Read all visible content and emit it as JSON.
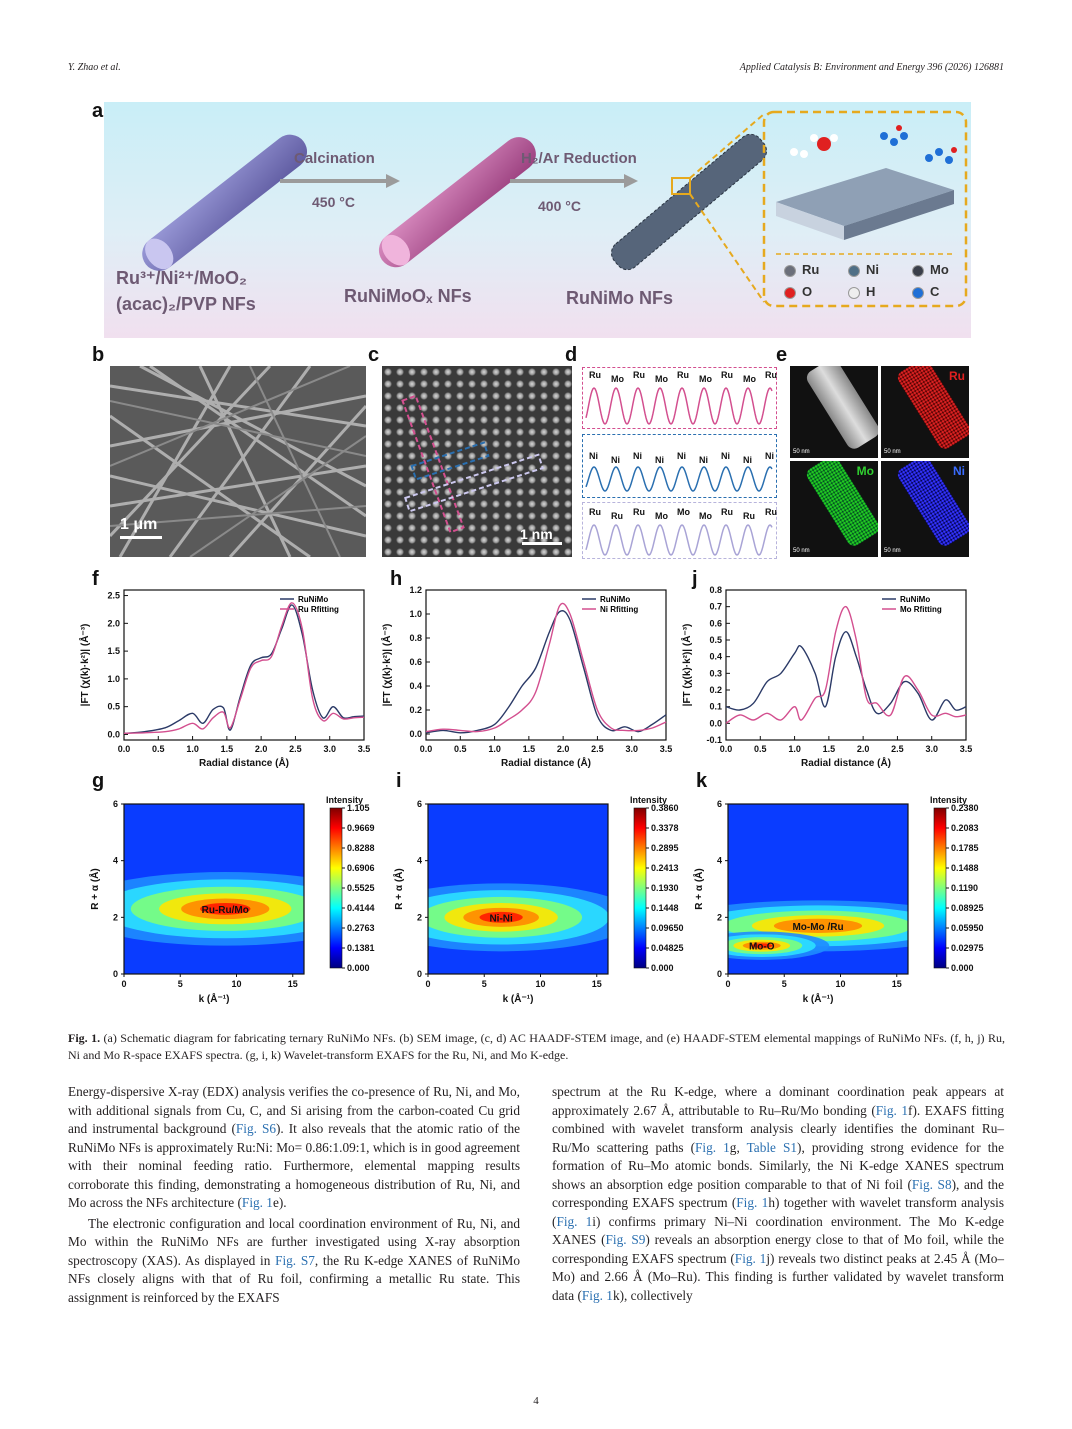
{
  "header": {
    "left": "Y. Zhao et al.",
    "right": "Applied Catalysis B: Environment and Energy 396 (2026) 126881"
  },
  "panels": {
    "a": "a",
    "b": "b",
    "c": "c",
    "d": "d",
    "e": "e",
    "f": "f",
    "g": "g",
    "h": "h",
    "i": "i",
    "j": "j",
    "k": "k"
  },
  "schematic": {
    "step1": "Calcination",
    "temp1": "450 °C",
    "step2": "H₂/Ar Reduction",
    "temp2": "400 °C",
    "precursor_line1": "Ru³⁺/Ni²⁺/MoO₂",
    "precursor_line2": "(acac)₂/PVP NFs",
    "oxide": "RuNiMoOₓ NFs",
    "product": "RuNiMo NFs",
    "legend": [
      "Ru",
      "Ni",
      "Mo",
      "O",
      "H",
      "C"
    ],
    "colors": {
      "Ru": "#6b6f7a",
      "Ni": "#4f6f86",
      "Mo": "#3a3f4a",
      "O": "#e02020",
      "H": "#eeeeee",
      "C": "#1f6fd6"
    }
  },
  "sem_scale": "1 μm",
  "stem_scale": "1 nm",
  "line_profiles": {
    "top": [
      "Ru",
      "Mo",
      "Ru",
      "Mo",
      "Ru",
      "Mo",
      "Ru",
      "Mo",
      "Ru"
    ],
    "middle": [
      "Ni",
      "Ni",
      "Ni",
      "Ni",
      "Ni",
      "Ni",
      "Ni",
      "Ni",
      "Ni"
    ],
    "bottom": [
      "Ru",
      "Ru",
      "Ru",
      "Mo",
      "Mo",
      "Mo",
      "Ru",
      "Ru",
      "Ru"
    ]
  },
  "mapping": {
    "labels": [
      "Ru",
      "Mo",
      "Ni"
    ],
    "scale": "50 nm"
  },
  "chart_data": [
    {
      "panel": "f",
      "type": "line",
      "xlabel": "Radial distance (Å)",
      "ylabel": "|FT (χ(k)·k²)| (Å⁻³)",
      "xlim": [
        0.0,
        3.5
      ],
      "ylim": [
        -0.1,
        2.6
      ],
      "xticks": [
        "0.0",
        "0.5",
        "1.0",
        "1.5",
        "2.0",
        "2.5",
        "3.0",
        "3.5"
      ],
      "yticks": [
        "0.0",
        "0.5",
        "1.0",
        "1.5",
        "2.0",
        "2.5"
      ],
      "series": [
        {
          "name": "RuNiMo",
          "color": "#2b3a67",
          "x": [
            0,
            0.3,
            0.6,
            0.8,
            1.0,
            1.15,
            1.3,
            1.45,
            1.55,
            1.7,
            1.85,
            2.0,
            2.15,
            2.3,
            2.45,
            2.6,
            2.75,
            2.9,
            3.05,
            3.2,
            3.35,
            3.5
          ],
          "y": [
            0.02,
            0.05,
            0.12,
            0.25,
            0.38,
            0.2,
            0.45,
            0.48,
            0.08,
            0.7,
            1.25,
            1.38,
            1.45,
            1.9,
            2.33,
            1.8,
            0.8,
            0.3,
            0.5,
            0.3,
            0.32,
            0.33
          ]
        },
        {
          "name": "Ru Rfitting",
          "color": "#d34f8f",
          "x": [
            0,
            0.3,
            0.6,
            0.8,
            1.0,
            1.15,
            1.3,
            1.45,
            1.55,
            1.7,
            1.85,
            2.0,
            2.15,
            2.3,
            2.45,
            2.6,
            2.75,
            2.9,
            3.05,
            3.2,
            3.35,
            3.5
          ],
          "y": [
            0.02,
            0.03,
            0.05,
            0.1,
            0.2,
            0.1,
            0.3,
            0.4,
            0.12,
            0.65,
            1.2,
            1.33,
            1.4,
            1.95,
            2.37,
            1.9,
            0.65,
            0.25,
            0.38,
            0.28,
            0.3,
            0.31
          ]
        }
      ]
    },
    {
      "panel": "h",
      "type": "line",
      "xlabel": "Radial distance (Å)",
      "ylabel": "|FT (χ(k)·k²)| (Å⁻³)",
      "xlim": [
        0.0,
        3.5
      ],
      "ylim": [
        -0.05,
        1.2
      ],
      "xticks": [
        "0.0",
        "0.5",
        "1.0",
        "1.5",
        "2.0",
        "2.5",
        "3.0",
        "3.5"
      ],
      "yticks": [
        "0.0",
        "0.2",
        "0.4",
        "0.6",
        "0.8",
        "1.0",
        "1.2"
      ],
      "series": [
        {
          "name": "RuNiMo",
          "color": "#2b3a67",
          "x": [
            0,
            0.25,
            0.5,
            0.75,
            1.0,
            1.2,
            1.4,
            1.6,
            1.8,
            1.95,
            2.1,
            2.3,
            2.5,
            2.7,
            2.9,
            3.1,
            3.3,
            3.5
          ],
          "y": [
            0.01,
            0.03,
            0.01,
            0.03,
            0.08,
            0.22,
            0.4,
            0.55,
            0.85,
            1.02,
            0.95,
            0.55,
            0.15,
            0.03,
            0.06,
            0.02,
            0.08,
            0.16
          ]
        },
        {
          "name": "Ni Rfitting",
          "color": "#d34f8f",
          "x": [
            0,
            0.25,
            0.5,
            0.75,
            1.0,
            1.2,
            1.4,
            1.6,
            1.8,
            1.95,
            2.1,
            2.3,
            2.5,
            2.7,
            2.9,
            3.1,
            3.3,
            3.5
          ],
          "y": [
            0.02,
            0.04,
            0.03,
            0.02,
            0.05,
            0.12,
            0.2,
            0.35,
            0.75,
            1.07,
            1.0,
            0.6,
            0.2,
            0.05,
            0.03,
            0.03,
            0.05,
            0.1
          ]
        }
      ]
    },
    {
      "panel": "j",
      "type": "line",
      "xlabel": "Radial distance (Å)",
      "ylabel": "|FT (χ(k)·k²)| (Å⁻³)",
      "xlim": [
        0.0,
        3.5
      ],
      "ylim": [
        -0.1,
        0.8
      ],
      "xticks": [
        "0.0",
        "0.5",
        "1.0",
        "1.5",
        "2.0",
        "2.5",
        "3.0",
        "3.5"
      ],
      "yticks": [
        "-0.1",
        "0.0",
        "0.1",
        "0.2",
        "0.3",
        "0.4",
        "0.5",
        "0.6",
        "0.7",
        "0.8"
      ],
      "series": [
        {
          "name": "RuNiMo",
          "color": "#2b3a67",
          "x": [
            0,
            0.2,
            0.4,
            0.6,
            0.8,
            1.0,
            1.1,
            1.3,
            1.45,
            1.6,
            1.75,
            1.9,
            2.05,
            2.2,
            2.4,
            2.6,
            2.8,
            3.0,
            3.2,
            3.35,
            3.5
          ],
          "y": [
            0.1,
            0.08,
            0.12,
            0.25,
            0.3,
            0.42,
            0.46,
            0.3,
            0.1,
            0.4,
            0.55,
            0.4,
            0.2,
            0.06,
            0.12,
            0.25,
            0.18,
            0.02,
            0.14,
            0.08,
            0.1
          ]
        },
        {
          "name": "Mo Rfitting",
          "color": "#d34f8f",
          "x": [
            0,
            0.2,
            0.4,
            0.6,
            0.8,
            1.0,
            1.1,
            1.3,
            1.45,
            1.6,
            1.75,
            1.9,
            2.05,
            2.2,
            2.4,
            2.6,
            2.8,
            3.0,
            3.2,
            3.35,
            3.5
          ],
          "y": [
            0.0,
            0.05,
            0.02,
            0.06,
            0.02,
            0.1,
            0.02,
            0.15,
            0.2,
            0.55,
            0.7,
            0.5,
            0.15,
            0.12,
            0.05,
            0.28,
            0.2,
            0.05,
            0.06,
            0.04,
            0.05
          ]
        }
      ]
    },
    {
      "panel": "g",
      "type": "heatmap",
      "xlabel": "k (Å⁻¹)",
      "ylabel": "R + α (Å)",
      "xlim": [
        0,
        16
      ],
      "ylim": [
        0,
        6
      ],
      "xticks": [
        "0",
        "5",
        "10",
        "15"
      ],
      "yticks": [
        "0",
        "2",
        "4",
        "6"
      ],
      "colorbar_title": "Intensity",
      "colorbar": [
        "1.105",
        "0.9669",
        "0.8288",
        "0.6906",
        "0.5525",
        "0.4144",
        "0.2763",
        "0.1381",
        "0.000"
      ],
      "annotations": [
        "Ru-Ru/Mo"
      ]
    },
    {
      "panel": "i",
      "type": "heatmap",
      "xlabel": "k (Å⁻¹)",
      "ylabel": "R + α (Å)",
      "xlim": [
        0,
        16
      ],
      "ylim": [
        0,
        6
      ],
      "xticks": [
        "0",
        "5",
        "10",
        "15"
      ],
      "yticks": [
        "0",
        "2",
        "4",
        "6"
      ],
      "colorbar_title": "Intensity",
      "colorbar": [
        "0.3860",
        "0.3378",
        "0.2895",
        "0.2413",
        "0.1930",
        "0.1448",
        "0.09650",
        "0.04825",
        "0.000"
      ],
      "annotations": [
        "Ni-Ni"
      ]
    },
    {
      "panel": "k",
      "type": "heatmap",
      "xlabel": "k (Å⁻¹)",
      "ylabel": "R + α (Å)",
      "xlim": [
        0,
        16
      ],
      "ylim": [
        0,
        6
      ],
      "xticks": [
        "0",
        "5",
        "10",
        "15"
      ],
      "yticks": [
        "0",
        "2",
        "4",
        "6"
      ],
      "colorbar_title": "Intensity",
      "colorbar": [
        "0.2380",
        "0.2083",
        "0.1785",
        "0.1488",
        "0.1190",
        "0.08925",
        "0.05950",
        "0.02975",
        "0.000"
      ],
      "annotations": [
        "Mo-Mo /Ru",
        "Mo-O"
      ]
    }
  ],
  "caption": {
    "label": "Fig. 1.",
    "text": " (a) Schematic diagram for fabricating ternary RuNiMo NFs. (b) SEM image, (c, d) AC HAADF-STEM image, and (e) HAADF-STEM elemental mappings of RuNiMo NFs. (f, h, j) Ru, Ni and Mo R-space EXAFS spectra. (g, i, k) Wavelet-transform EXAFS for the Ru, Ni, and Mo K-edge."
  },
  "body_left": {
    "p1_a": "Energy-dispersive X-ray (EDX) analysis verifies the co-presence of Ru, Ni, and Mo, with additional signals from Cu, C, and Si arising from the carbon-coated Cu grid and instrumental background (",
    "p1_link1": "Fig. S6",
    "p1_b": "). It also reveals that the atomic ratio of the RuNiMo NFs is approximately Ru:Ni: Mo= 0.86:1.09:1, which is in good agreement with their nominal feeding ratio. Furthermore, elemental mapping results corroborate this finding, demonstrating a homogeneous distribution of Ru, Ni, and Mo across the NFs architecture (",
    "p1_link2": "Fig. 1",
    "p1_c": "e).",
    "p2_a": "The electronic configuration and local coordination environment of Ru, Ni, and Mo within the RuNiMo NFs are further investigated using X-ray absorption spectroscopy (XAS). As displayed in ",
    "p2_link1": "Fig. S7",
    "p2_b": ", the Ru K-edge XANES of RuNiMo NFs closely aligns with that of Ru foil, confirming a metallic Ru state. This assignment is reinforced by the EXAFS"
  },
  "body_right": {
    "a": "spectrum at the Ru K-edge, where a dominant coordination peak appears at approximately 2.67 Å, attributable to Ru–Ru/Mo bonding (",
    "l1": "Fig. 1",
    "b": "f). EXAFS fitting combined with wavelet transform analysis clearly identifies the dominant Ru–Ru/Mo scattering paths (",
    "l2": "Fig. 1",
    "c": "g, ",
    "l3": "Table S1",
    "d": "), providing strong evidence for the formation of Ru–Mo atomic bonds. Similarly, the Ni K-edge XANES spectrum shows an absorption edge position comparable to that of Ni foil (",
    "l4": "Fig. S8",
    "e": "), and the corresponding EXAFS spectrum (",
    "l5": "Fig. 1",
    "f": "h) together with wavelet transform analysis (",
    "l6": "Fig. 1",
    "g": "i) confirms primary Ni–Ni coordination environment. The Mo K-edge XANES (",
    "l7": "Fig. S9",
    "h": ") reveals an absorption energy close to that of Mo foil, while the corresponding EXAFS spectrum (",
    "l8": "Fig. 1",
    "i": "j) reveals two distinct peaks at 2.45 Å (Mo–Mo) and 2.66 Å (Mo–Ru). This finding is further validated by wavelet transform data (",
    "l9": "Fig. 1",
    "j": "k), collectively"
  },
  "page_number": "4"
}
